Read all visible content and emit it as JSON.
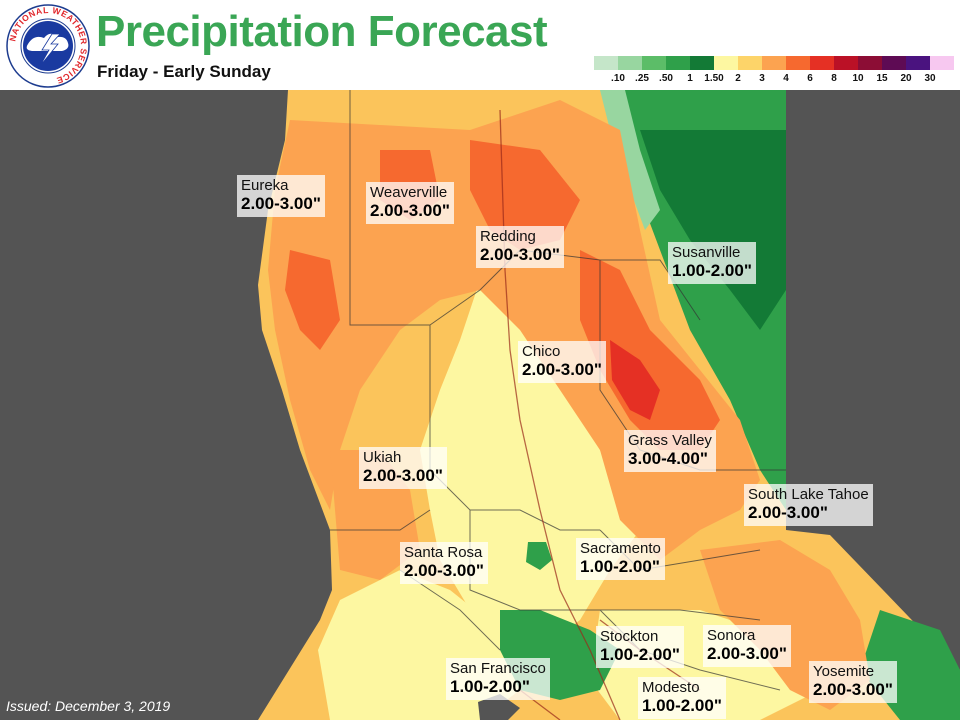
{
  "header": {
    "title": "Precipitation Forecast",
    "subtitle": "Friday - Early Sunday",
    "logo_text": "NATIONAL WEATHER SERVICE"
  },
  "legend": {
    "labels": [
      ".10",
      ".25",
      ".50",
      "1",
      "1.50",
      "2",
      "3",
      "4",
      "6",
      "8",
      "10",
      "15",
      "20",
      "30"
    ],
    "colors": [
      "#c5e6c9",
      "#98d6a0",
      "#5cbd68",
      "#2fa04a",
      "#137a36",
      "#fdf7a1",
      "#fdd469",
      "#fca350",
      "#f6692f",
      "#e53024",
      "#bb1126",
      "#8c0d35",
      "#5e0b54",
      "#4a137f",
      "#f7c8f0"
    ]
  },
  "cities": [
    {
      "name": "Eureka",
      "amount": "2.00-3.00\""
    },
    {
      "name": "Weaverville",
      "amount": "2.00-3.00\""
    },
    {
      "name": "Redding",
      "amount": "2.00-3.00\""
    },
    {
      "name": "Susanville",
      "amount": "1.00-2.00\""
    },
    {
      "name": "Chico",
      "amount": "2.00-3.00\""
    },
    {
      "name": "Grass Valley",
      "amount": "3.00-4.00\""
    },
    {
      "name": "Ukiah",
      "amount": "2.00-3.00\""
    },
    {
      "name": "South Lake Tahoe",
      "amount": "2.00-3.00\""
    },
    {
      "name": "Santa Rosa",
      "amount": "2.00-3.00\""
    },
    {
      "name": "Sacramento",
      "amount": "1.00-2.00\""
    },
    {
      "name": "Stockton",
      "amount": "1.00-2.00\""
    },
    {
      "name": "Sonora",
      "amount": "2.00-3.00\""
    },
    {
      "name": "San Francisco",
      "amount": "1.00-2.00\""
    },
    {
      "name": "Modesto",
      "amount": "1.00-2.00\""
    },
    {
      "name": "Yosemite",
      "amount": "2.00-3.00\""
    }
  ],
  "footer": {
    "issued": "Issued: December 3, 2019"
  }
}
